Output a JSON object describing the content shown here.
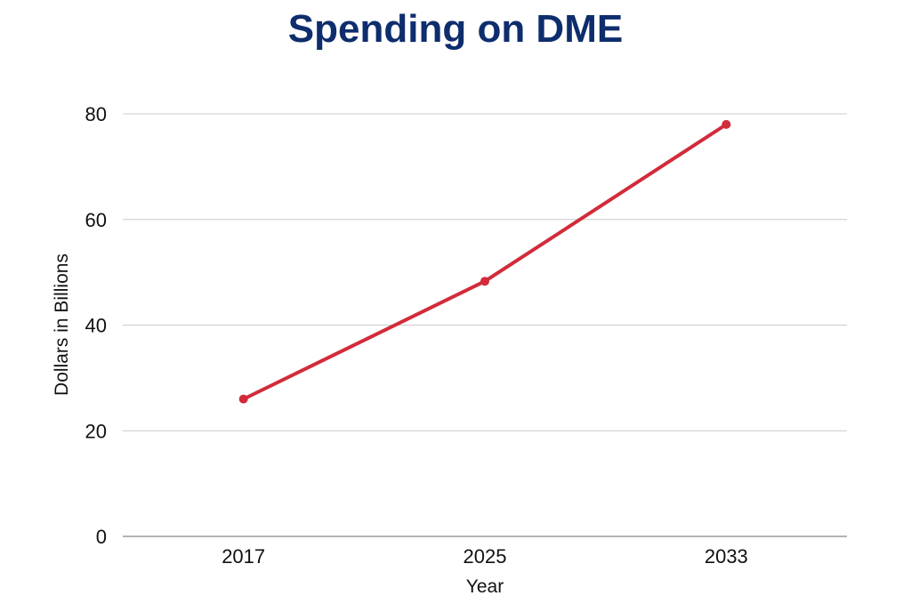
{
  "chart_data": {
    "type": "line",
    "title": "Spending on DME",
    "xlabel": "Year",
    "ylabel": "Dollars in Billions",
    "categories": [
      "2017",
      "2025",
      "2033"
    ],
    "series": [
      {
        "name": "Spending on DME",
        "values": [
          26,
          48.3,
          78
        ]
      }
    ],
    "yticks": [
      "0",
      "20",
      "40",
      "60",
      "80"
    ],
    "ylim": [
      0,
      80
    ],
    "grid": true,
    "colors": {
      "line": "#d22b3a",
      "title": "#0e2d6d",
      "grid": "#cccccc",
      "axis": "#888888"
    }
  }
}
